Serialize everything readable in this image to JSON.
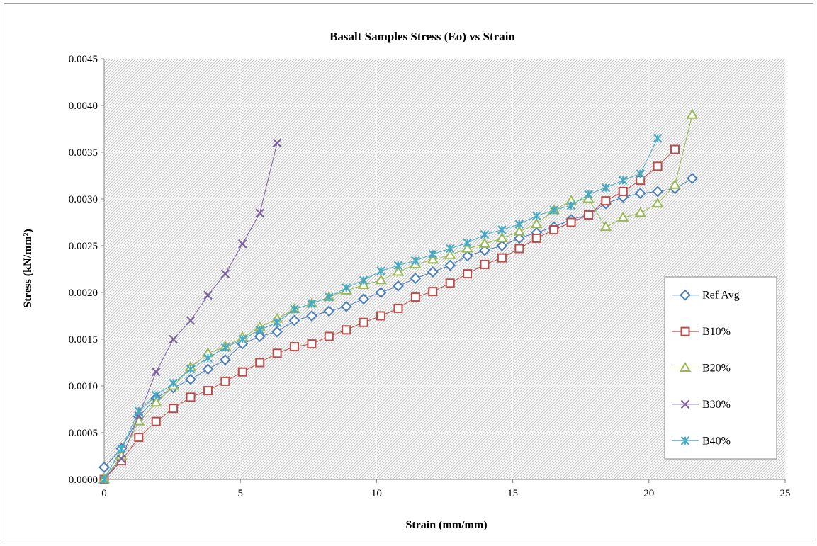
{
  "chart_data": {
    "type": "line",
    "title": "Basalt Samples Stress (Eo) vs Strain",
    "xlabel": "Strain (mm/mm)",
    "ylabel": "Stress (kN/mm²)",
    "xlim": [
      0,
      25
    ],
    "ylim": [
      0,
      0.0045
    ],
    "x_ticks": [
      "0",
      "5",
      "10",
      "15",
      "20",
      "25"
    ],
    "y_ticks": [
      "0.0000",
      "0.0005",
      "0.0010",
      "0.0015",
      "0.0020",
      "0.0025",
      "0.0030",
      "0.0035",
      "0.0040",
      "0.0045"
    ],
    "grid": true,
    "legend_position": "right",
    "series": [
      {
        "name": "Ref Avg",
        "color": "#4a7ebb",
        "marker": "diamond",
        "x": [
          0,
          0.635,
          1.27,
          1.905,
          2.54,
          3.175,
          3.81,
          4.445,
          5.08,
          5.715,
          6.35,
          6.985,
          7.62,
          8.255,
          8.89,
          9.525,
          10.16,
          10.795,
          11.43,
          12.065,
          12.7,
          13.335,
          13.97,
          14.605,
          15.24,
          15.875,
          16.51,
          17.145,
          17.78,
          18.415,
          19.05,
          19.685,
          20.32,
          20.955,
          21.59
        ],
        "y": [
          0.00013,
          0.00033,
          0.00067,
          0.00087,
          0.00098,
          0.00107,
          0.00118,
          0.00128,
          0.00145,
          0.00153,
          0.00158,
          0.0017,
          0.00175,
          0.0018,
          0.00185,
          0.00193,
          0.002,
          0.00207,
          0.00215,
          0.00222,
          0.00229,
          0.00239,
          0.00245,
          0.0025,
          0.00258,
          0.00264,
          0.0027,
          0.00278,
          0.00283,
          0.00295,
          0.00302,
          0.00306,
          0.00308,
          0.00311,
          0.00322
        ]
      },
      {
        "name": "B10%",
        "color": "#be4b48",
        "marker": "square",
        "x": [
          0,
          0.635,
          1.27,
          1.905,
          2.54,
          3.175,
          3.81,
          4.445,
          5.08,
          5.715,
          6.35,
          6.985,
          7.62,
          8.255,
          8.89,
          9.525,
          10.16,
          10.795,
          11.43,
          12.065,
          12.7,
          13.335,
          13.97,
          14.605,
          15.24,
          15.875,
          16.51,
          17.145,
          17.78,
          18.415,
          19.05,
          19.685,
          20.32,
          20.955
        ],
        "y": [
          0,
          0.0002,
          0.00045,
          0.00062,
          0.00076,
          0.00088,
          0.00095,
          0.00105,
          0.00115,
          0.00125,
          0.00135,
          0.00142,
          0.00145,
          0.00153,
          0.0016,
          0.00168,
          0.00175,
          0.00183,
          0.00195,
          0.00201,
          0.0021,
          0.0022,
          0.0023,
          0.00237,
          0.00247,
          0.00258,
          0.00267,
          0.00275,
          0.00283,
          0.00298,
          0.00308,
          0.0032,
          0.00335,
          0.00353
        ]
      },
      {
        "name": "B20%",
        "color": "#98b954",
        "marker": "triangle",
        "x": [
          0,
          0.635,
          1.27,
          1.905,
          2.54,
          3.175,
          3.81,
          4.445,
          5.08,
          5.715,
          6.35,
          6.985,
          7.62,
          8.255,
          8.89,
          9.525,
          10.16,
          10.795,
          11.43,
          12.065,
          12.7,
          13.335,
          13.97,
          14.605,
          15.24,
          15.875,
          16.51,
          17.145,
          17.78,
          18.415,
          19.05,
          19.685,
          20.32,
          20.955,
          21.59
        ],
        "y": [
          0,
          0.00025,
          0.00062,
          0.00082,
          0.001,
          0.0012,
          0.00135,
          0.00142,
          0.00152,
          0.00163,
          0.00172,
          0.00182,
          0.00188,
          0.00195,
          0.00202,
          0.00208,
          0.00213,
          0.00222,
          0.0023,
          0.00235,
          0.0024,
          0.00247,
          0.00252,
          0.00258,
          0.00265,
          0.00273,
          0.00288,
          0.00298,
          0.003,
          0.0027,
          0.0028,
          0.00285,
          0.00295,
          0.00315,
          0.0039
        ]
      },
      {
        "name": "B30%",
        "color": "#7d60a0",
        "marker": "x",
        "x": [
          0,
          0.635,
          1.27,
          1.905,
          2.54,
          3.175,
          3.81,
          4.445,
          5.08,
          5.715,
          6.35
        ],
        "y": [
          0,
          0.00022,
          0.00068,
          0.00115,
          0.0015,
          0.0017,
          0.00197,
          0.0022,
          0.00252,
          0.00285,
          0.0036
        ]
      },
      {
        "name": "B40%",
        "color": "#46aac5",
        "marker": "star",
        "x": [
          0,
          0.635,
          1.27,
          1.905,
          2.54,
          3.175,
          3.81,
          4.445,
          5.08,
          5.715,
          6.35,
          6.985,
          7.62,
          8.255,
          8.89,
          9.525,
          10.16,
          10.795,
          11.43,
          12.065,
          12.7,
          13.335,
          13.97,
          14.605,
          15.24,
          15.875,
          16.51,
          17.145,
          17.78,
          18.415,
          19.05,
          19.685,
          20.32
        ],
        "y": [
          0,
          0.00033,
          0.00073,
          0.0009,
          0.00103,
          0.00118,
          0.0013,
          0.00141,
          0.0015,
          0.0016,
          0.00168,
          0.00182,
          0.00188,
          0.00195,
          0.00205,
          0.00213,
          0.00223,
          0.00229,
          0.00234,
          0.00241,
          0.00247,
          0.00253,
          0.00262,
          0.00267,
          0.00273,
          0.00282,
          0.00288,
          0.00293,
          0.00305,
          0.00312,
          0.0032,
          0.00327,
          0.00365
        ]
      }
    ]
  }
}
